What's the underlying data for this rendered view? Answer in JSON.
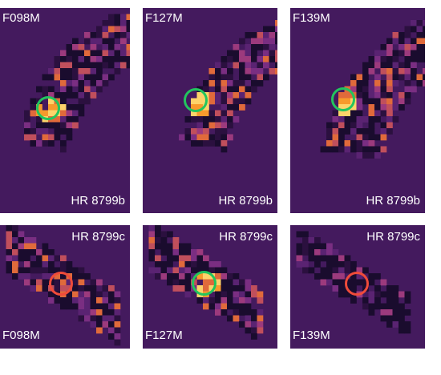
{
  "colors": {
    "background": "#441a5e",
    "detected_ring": "#22c55e",
    "nondetected_ring": "#ef4b3a",
    "label_text": "#ffffff"
  },
  "panels": [
    {
      "filter": "F098M",
      "target": "HR 8799b",
      "detected": true
    },
    {
      "filter": "F127M",
      "target": "HR 8799b",
      "detected": true
    },
    {
      "filter": "F139M",
      "target": "HR 8799b",
      "detected": true
    },
    {
      "filter": "F098M",
      "target": "HR 8799c",
      "detected": false
    },
    {
      "filter": "F127M",
      "target": "HR 8799c",
      "detected": true
    },
    {
      "filter": "F139M",
      "target": "HR 8799c",
      "detected": false
    }
  ]
}
